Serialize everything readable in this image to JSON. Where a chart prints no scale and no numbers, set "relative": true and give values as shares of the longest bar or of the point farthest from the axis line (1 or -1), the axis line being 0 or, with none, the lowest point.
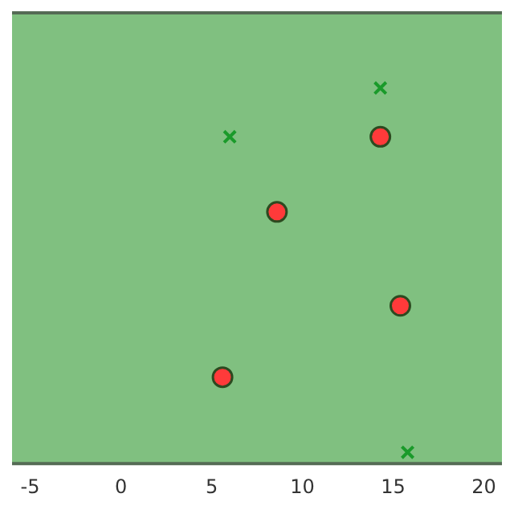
{
  "chart_data": {
    "type": "scatter",
    "relative": true,
    "xlim": [
      -6,
      21
    ],
    "xticks": [
      -5,
      0,
      5,
      10,
      15,
      20
    ],
    "grid": false,
    "legend": false,
    "series": [
      {
        "color": "#1a9a2a",
        "marker": "cross",
        "x": [
          6.0,
          14.3,
          15.8
        ],
        "values": [
          0.87,
          1.0,
          0.03
        ]
      },
      {
        "color": "#ff3a3a",
        "marker": "circle",
        "x": [
          14.3,
          8.6,
          15.4,
          5.6
        ],
        "values": [
          0.87,
          0.67,
          0.42,
          0.23
        ]
      }
    ]
  }
}
